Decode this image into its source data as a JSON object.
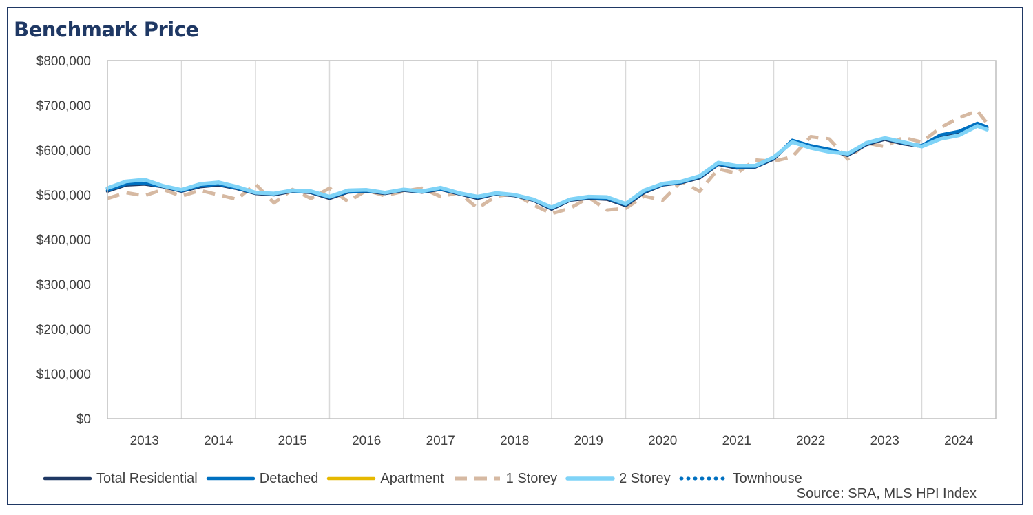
{
  "chart_data": {
    "type": "line",
    "title": "Benchmark Price",
    "source": "Source: SRA, MLS HPI Index",
    "ylim": [
      0,
      800000
    ],
    "yticks": [
      "$800,000",
      "$700,000",
      "$600,000",
      "$500,000",
      "$400,000",
      "$300,000",
      "$200,000",
      "$100,000",
      "$0"
    ],
    "ytick_values": [
      800000,
      700000,
      600000,
      500000,
      400000,
      300000,
      200000,
      100000,
      0
    ],
    "xlim": [
      2013.0,
      2025.0
    ],
    "x_categories": [
      "2013",
      "2014",
      "2015",
      "2016",
      "2017",
      "2018",
      "2019",
      "2020",
      "2021",
      "2022",
      "2023",
      "2024"
    ],
    "grid": true,
    "legend_position": "bottom",
    "series": [
      {
        "name": "Total Residential",
        "color": "#1f3864",
        "style": "solid",
        "x": [
          2013.0,
          2013.25,
          2013.5,
          2013.75,
          2014.0,
          2014.25,
          2014.5,
          2014.75,
          2015.0,
          2015.25,
          2015.5,
          2015.75,
          2016.0,
          2016.25,
          2016.5,
          2016.75,
          2017.0,
          2017.25,
          2017.5,
          2017.75,
          2018.0,
          2018.25,
          2018.5,
          2018.75,
          2019.0,
          2019.25,
          2019.5,
          2019.75,
          2020.0,
          2020.25,
          2020.5,
          2020.75,
          2021.0,
          2021.25,
          2021.5,
          2021.75,
          2022.0,
          2022.25,
          2022.5,
          2022.75,
          2023.0,
          2023.25,
          2023.5,
          2023.75,
          2024.0,
          2024.25,
          2024.5,
          2024.75,
          2024.88
        ],
        "y": [
          508000,
          522000,
          524000,
          518000,
          508000,
          518000,
          522000,
          514000,
          503000,
          500000,
          508000,
          505000,
          492000,
          506000,
          508000,
          503000,
          510000,
          506000,
          512000,
          502000,
          492000,
          502000,
          498000,
          488000,
          468000,
          488000,
          492000,
          490000,
          476000,
          505000,
          522000,
          527000,
          538000,
          568000,
          560000,
          562000,
          580000,
          620000,
          608000,
          600000,
          588000,
          612000,
          624000,
          614000,
          608000,
          632000,
          640000,
          658000,
          650000
        ]
      },
      {
        "name": "Detached",
        "color": "#0070c0",
        "style": "solid",
        "x": [
          2013.0,
          2013.25,
          2013.5,
          2013.75,
          2014.0,
          2014.25,
          2014.5,
          2014.75,
          2015.0,
          2015.25,
          2015.5,
          2015.75,
          2016.0,
          2016.25,
          2016.5,
          2016.75,
          2017.0,
          2017.25,
          2017.5,
          2017.75,
          2018.0,
          2018.25,
          2018.5,
          2018.75,
          2019.0,
          2019.25,
          2019.5,
          2019.75,
          2020.0,
          2020.25,
          2020.5,
          2020.75,
          2021.0,
          2021.25,
          2021.5,
          2021.75,
          2022.0,
          2022.25,
          2022.5,
          2022.75,
          2023.0,
          2023.25,
          2023.5,
          2023.75,
          2024.0,
          2024.25,
          2024.5,
          2024.75,
          2024.88
        ],
        "y": [
          510000,
          524000,
          526000,
          519000,
          509000,
          520000,
          524000,
          515000,
          504000,
          502000,
          509000,
          506000,
          494000,
          507000,
          509000,
          504000,
          511000,
          507000,
          513000,
          503000,
          494000,
          503000,
          499000,
          489000,
          470000,
          489000,
          494000,
          492000,
          478000,
          507000,
          523000,
          528000,
          540000,
          569000,
          562000,
          563000,
          582000,
          622000,
          610000,
          602000,
          590000,
          614000,
          626000,
          616000,
          610000,
          634000,
          642000,
          660000,
          652000
        ]
      },
      {
        "name": "Apartment",
        "color": "#e6b800",
        "style": "solid",
        "x": [],
        "y": []
      },
      {
        "name": "1 Storey",
        "color": "#d6b9a2",
        "style": "dashed",
        "x": [
          2013.0,
          2013.25,
          2013.5,
          2013.75,
          2014.0,
          2014.25,
          2014.5,
          2014.75,
          2015.0,
          2015.25,
          2015.5,
          2015.75,
          2016.0,
          2016.25,
          2016.5,
          2016.75,
          2017.0,
          2017.25,
          2017.5,
          2017.75,
          2018.0,
          2018.25,
          2018.5,
          2018.75,
          2019.0,
          2019.25,
          2019.5,
          2019.75,
          2020.0,
          2020.25,
          2020.5,
          2020.75,
          2021.0,
          2021.25,
          2021.5,
          2021.75,
          2022.0,
          2022.25,
          2022.5,
          2022.75,
          2023.0,
          2023.25,
          2023.5,
          2023.75,
          2024.0,
          2024.25,
          2024.5,
          2024.75,
          2024.88
        ],
        "y": [
          492000,
          505000,
          498000,
          512000,
          497000,
          510000,
          500000,
          490000,
          524000,
          482000,
          512000,
          492000,
          515000,
          485000,
          510000,
          498000,
          508000,
          515000,
          496000,
          505000,
          470000,
          497000,
          502000,
          478000,
          458000,
          470000,
          494000,
          466000,
          470000,
          497000,
          488000,
          530000,
          508000,
          558000,
          548000,
          578000,
          575000,
          585000,
          630000,
          625000,
          580000,
          616000,
          608000,
          628000,
          618000,
          650000,
          672000,
          688000,
          660000
        ]
      },
      {
        "name": "2 Storey",
        "color": "#7fd3f7",
        "style": "solid",
        "x": [
          2013.0,
          2013.25,
          2013.5,
          2013.75,
          2014.0,
          2014.25,
          2014.5,
          2014.75,
          2015.0,
          2015.25,
          2015.5,
          2015.75,
          2016.0,
          2016.25,
          2016.5,
          2016.75,
          2017.0,
          2017.25,
          2017.5,
          2017.75,
          2018.0,
          2018.25,
          2018.5,
          2018.75,
          2019.0,
          2019.25,
          2019.5,
          2019.75,
          2020.0,
          2020.25,
          2020.5,
          2020.75,
          2021.0,
          2021.25,
          2021.5,
          2021.75,
          2022.0,
          2022.25,
          2022.5,
          2022.75,
          2023.0,
          2023.25,
          2023.5,
          2023.75,
          2024.0,
          2024.25,
          2024.5,
          2024.75,
          2024.88
        ],
        "y": [
          515000,
          530000,
          534000,
          520000,
          511000,
          524000,
          528000,
          518000,
          505000,
          503000,
          510000,
          508000,
          496000,
          510000,
          511000,
          505000,
          512000,
          508000,
          516000,
          504000,
          496000,
          504000,
          500000,
          490000,
          472000,
          490000,
          496000,
          495000,
          480000,
          510000,
          525000,
          530000,
          542000,
          572000,
          565000,
          565000,
          584000,
          618000,
          605000,
          596000,
          592000,
          616000,
          627000,
          618000,
          608000,
          625000,
          633000,
          654000,
          646000
        ]
      },
      {
        "name": "Townhouse",
        "color": "#0070c0",
        "style": "dotted",
        "x": [],
        "y": []
      }
    ]
  }
}
